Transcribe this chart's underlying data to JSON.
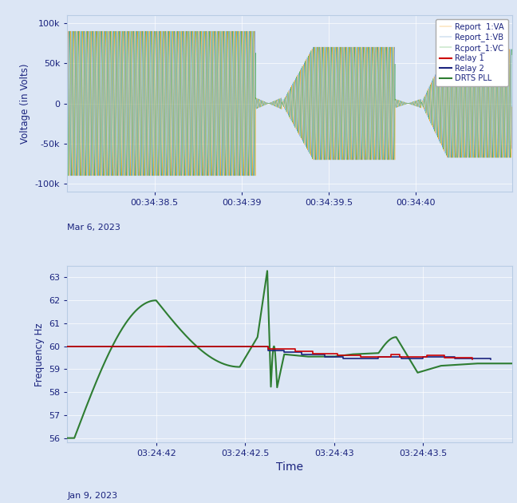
{
  "top_panel": {
    "ylabel": "Voltage (in Volts)",
    "xlabel_date": "Mar 6, 2023",
    "ylim": [
      -110000,
      110000
    ],
    "yticks": [
      -100000,
      -50000,
      0,
      50000,
      100000
    ],
    "ytick_labels": [
      "-100k",
      "-50k",
      "0",
      "50k",
      "100k"
    ],
    "xtick_labels": [
      "00:34:38.5",
      "00:34:39",
      "00:34:39.5",
      "00:34:40"
    ],
    "xtick_pos": [
      0.5,
      1.0,
      1.5,
      2.0
    ],
    "xlim": [
      0.0,
      2.55
    ],
    "bg_color": "#dce6f5",
    "color_VA": "#f5a623",
    "color_VB": "#6699cc",
    "color_VC": "#4caf50",
    "legend_entries": [
      "Report  1:VA",
      "Report_1:VB",
      "Rcport_1:VC",
      "Relay 1",
      "Relay 2",
      "DRTS PLL"
    ],
    "legend_colors": [
      "#f5a623",
      "#6699cc",
      "#4caf50",
      "#cc0000",
      "#1a237e",
      "#2e7d32"
    ],
    "amplitude": 90000,
    "freq_hz": 60
  },
  "bottom_panel": {
    "ylabel": "Frequency Hz",
    "xlabel": "Time",
    "xlabel_date": "Jan 9, 2023",
    "ylim": [
      55.8,
      63.5
    ],
    "yticks": [
      56,
      57,
      58,
      59,
      60,
      61,
      62,
      63
    ],
    "xtick_labels": [
      "03:24:42",
      "03:24:42.5",
      "03:24:43",
      "03:24:43.5"
    ],
    "xtick_pos": [
      0.5,
      1.0,
      1.5,
      2.0
    ],
    "xlim": [
      0.0,
      2.5
    ],
    "bg_color": "#dce6f5",
    "color_relay1": "#cc0000",
    "color_relay2": "#1a237e",
    "color_drts": "#2e7d32"
  },
  "fig_bg": "#dce6f5",
  "label_color": "#1a237e"
}
